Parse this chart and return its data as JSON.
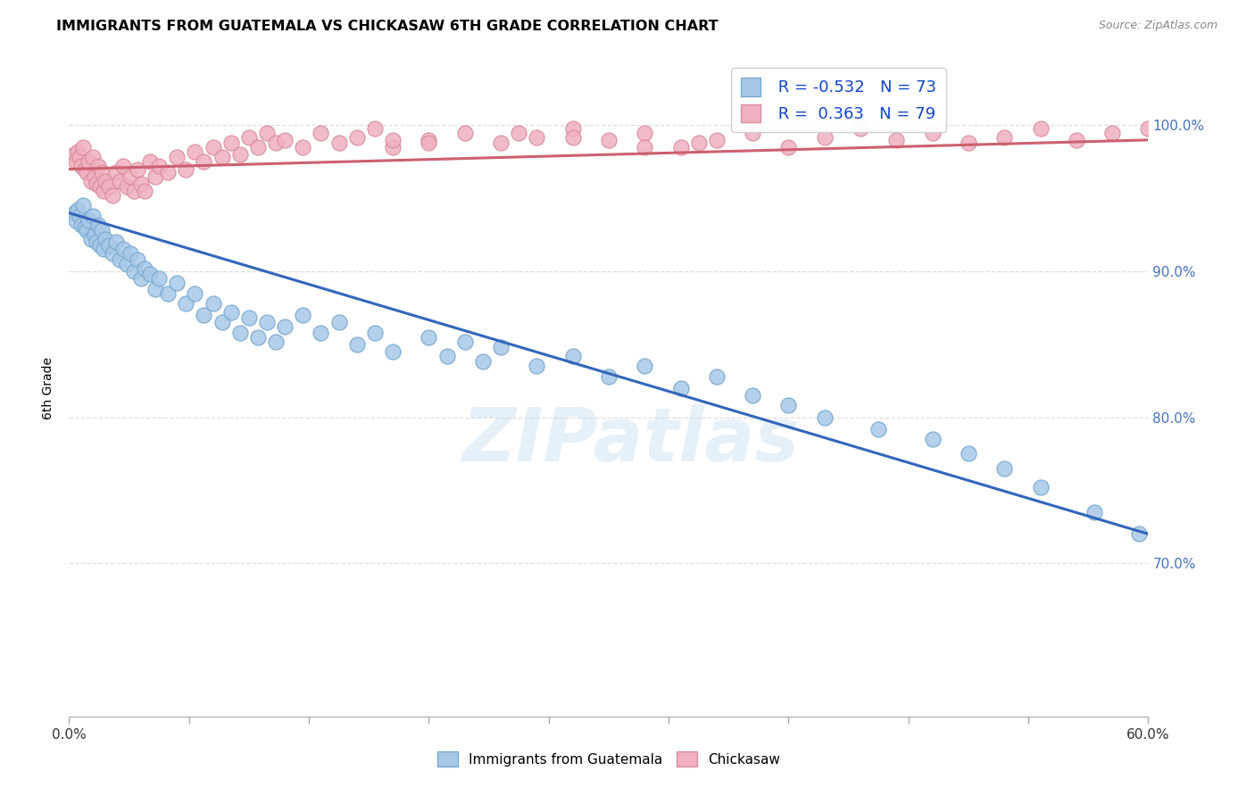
{
  "title": "IMMIGRANTS FROM GUATEMALA VS CHICKASAW 6TH GRADE CORRELATION CHART",
  "source": "Source: ZipAtlas.com",
  "ylabel": "6th Grade",
  "ytick_labels": [
    "70.0%",
    "80.0%",
    "90.0%",
    "100.0%"
  ],
  "ytick_values": [
    0.7,
    0.8,
    0.9,
    1.0
  ],
  "xlim": [
    0.0,
    0.6
  ],
  "ylim": [
    0.595,
    1.045
  ],
  "legend_blue_label": "Immigrants from Guatemala",
  "legend_pink_label": "Chickasaw",
  "R_blue": -0.532,
  "N_blue": 73,
  "R_pink": 0.363,
  "N_pink": 79,
  "blue_color": "#a8c8e8",
  "pink_color": "#f0b0c0",
  "blue_edge_color": "#7aaad0",
  "pink_edge_color": "#d890a0",
  "blue_line_color": "#3366bb",
  "pink_line_color": "#cc6070",
  "blue_trend_x0": 0.0,
  "blue_trend_y0": 0.94,
  "blue_trend_x1": 0.6,
  "blue_trend_y1": 0.72,
  "pink_trend_x0": 0.0,
  "pink_trend_y0": 0.97,
  "pink_trend_x1": 0.6,
  "pink_trend_y1": 0.99,
  "watermark": "ZIPatlas",
  "blue_points_x": [
    0.003,
    0.004,
    0.005,
    0.006,
    0.007,
    0.008,
    0.009,
    0.01,
    0.011,
    0.012,
    0.013,
    0.014,
    0.015,
    0.016,
    0.017,
    0.018,
    0.019,
    0.02,
    0.022,
    0.024,
    0.026,
    0.028,
    0.03,
    0.032,
    0.034,
    0.036,
    0.038,
    0.04,
    0.042,
    0.045,
    0.048,
    0.05,
    0.055,
    0.06,
    0.065,
    0.07,
    0.075,
    0.08,
    0.085,
    0.09,
    0.095,
    0.1,
    0.105,
    0.11,
    0.115,
    0.12,
    0.13,
    0.14,
    0.15,
    0.16,
    0.17,
    0.18,
    0.2,
    0.21,
    0.22,
    0.23,
    0.24,
    0.26,
    0.28,
    0.3,
    0.32,
    0.34,
    0.36,
    0.38,
    0.4,
    0.42,
    0.45,
    0.48,
    0.5,
    0.52,
    0.54,
    0.57,
    0.595
  ],
  "blue_points_y": [
    0.94,
    0.935,
    0.942,
    0.938,
    0.932,
    0.945,
    0.93,
    0.928,
    0.935,
    0.922,
    0.938,
    0.925,
    0.92,
    0.932,
    0.918,
    0.928,
    0.915,
    0.922,
    0.918,
    0.912,
    0.92,
    0.908,
    0.915,
    0.905,
    0.912,
    0.9,
    0.908,
    0.895,
    0.902,
    0.898,
    0.888,
    0.895,
    0.885,
    0.892,
    0.878,
    0.885,
    0.87,
    0.878,
    0.865,
    0.872,
    0.858,
    0.868,
    0.855,
    0.865,
    0.852,
    0.862,
    0.87,
    0.858,
    0.865,
    0.85,
    0.858,
    0.845,
    0.855,
    0.842,
    0.852,
    0.838,
    0.848,
    0.835,
    0.842,
    0.828,
    0.835,
    0.82,
    0.828,
    0.815,
    0.808,
    0.8,
    0.792,
    0.785,
    0.775,
    0.765,
    0.752,
    0.735,
    0.72
  ],
  "pink_points_x": [
    0.003,
    0.004,
    0.005,
    0.006,
    0.007,
    0.008,
    0.009,
    0.01,
    0.011,
    0.012,
    0.013,
    0.014,
    0.015,
    0.016,
    0.017,
    0.018,
    0.019,
    0.02,
    0.022,
    0.024,
    0.026,
    0.028,
    0.03,
    0.032,
    0.034,
    0.036,
    0.038,
    0.04,
    0.042,
    0.045,
    0.048,
    0.05,
    0.055,
    0.06,
    0.065,
    0.07,
    0.075,
    0.08,
    0.085,
    0.09,
    0.095,
    0.1,
    0.105,
    0.11,
    0.115,
    0.12,
    0.13,
    0.14,
    0.15,
    0.16,
    0.17,
    0.18,
    0.2,
    0.22,
    0.24,
    0.26,
    0.28,
    0.3,
    0.32,
    0.34,
    0.36,
    0.38,
    0.4,
    0.42,
    0.44,
    0.46,
    0.48,
    0.5,
    0.52,
    0.54,
    0.56,
    0.58,
    0.6,
    0.35,
    0.28,
    0.32,
    0.25,
    0.2,
    0.18
  ],
  "pink_points_y": [
    0.98,
    0.975,
    0.982,
    0.978,
    0.972,
    0.985,
    0.97,
    0.968,
    0.975,
    0.962,
    0.978,
    0.965,
    0.96,
    0.972,
    0.958,
    0.968,
    0.955,
    0.962,
    0.958,
    0.952,
    0.968,
    0.962,
    0.972,
    0.958,
    0.965,
    0.955,
    0.97,
    0.96,
    0.955,
    0.975,
    0.965,
    0.972,
    0.968,
    0.978,
    0.97,
    0.982,
    0.975,
    0.985,
    0.978,
    0.988,
    0.98,
    0.992,
    0.985,
    0.995,
    0.988,
    0.99,
    0.985,
    0.995,
    0.988,
    0.992,
    0.998,
    0.985,
    0.99,
    0.995,
    0.988,
    0.992,
    0.998,
    0.99,
    0.995,
    0.985,
    0.99,
    0.995,
    0.985,
    0.992,
    0.998,
    0.99,
    0.995,
    0.988,
    0.992,
    0.998,
    0.99,
    0.995,
    0.998,
    0.988,
    0.992,
    0.985,
    0.995,
    0.988,
    0.99
  ]
}
